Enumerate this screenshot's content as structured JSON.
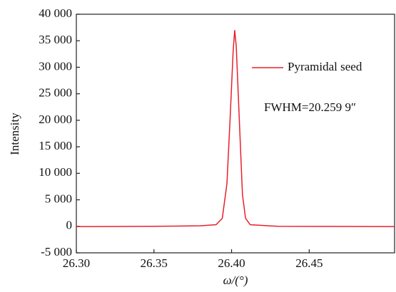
{
  "chart_data": {
    "type": "line",
    "x_label": "ω/(°)",
    "y_label": "Intensity",
    "annotation": "FWHM=20.259 9″",
    "legend_position": "upper right",
    "xlim": [
      26.3,
      26.505
    ],
    "ylim": [
      -5000,
      40000
    ],
    "xticks": [
      {
        "value": 26.3,
        "label": "26.30"
      },
      26.35,
      {
        "value": 26.4,
        "label": "26.40"
      },
      26.45
    ],
    "yticks": [
      {
        "value": -5000,
        "label": "-5 000"
      },
      0,
      {
        "value": 5000,
        "label": "5 000"
      },
      {
        "value": 10000,
        "label": "10 000"
      },
      {
        "value": 15000,
        "label": "15 000"
      },
      {
        "value": 20000,
        "label": "20 000"
      },
      {
        "value": 25000,
        "label": "25 000"
      },
      {
        "value": 30000,
        "label": "30 000"
      },
      {
        "value": 35000,
        "label": "35 000"
      },
      {
        "value": 40000,
        "label": "40 000"
      }
    ],
    "x": [
      26.3,
      26.35,
      26.38,
      26.39,
      26.394,
      26.397,
      26.399,
      26.401,
      26.402,
      26.403,
      26.405,
      26.407,
      26.409,
      26.412,
      26.43,
      26.505
    ],
    "series": [
      {
        "name": "Pyramidal seed",
        "color": "#e8202a",
        "values": [
          -50,
          0,
          100,
          300,
          1500,
          8000,
          20000,
          33000,
          37000,
          34000,
          20000,
          6000,
          1500,
          300,
          0,
          -50
        ]
      }
    ]
  }
}
